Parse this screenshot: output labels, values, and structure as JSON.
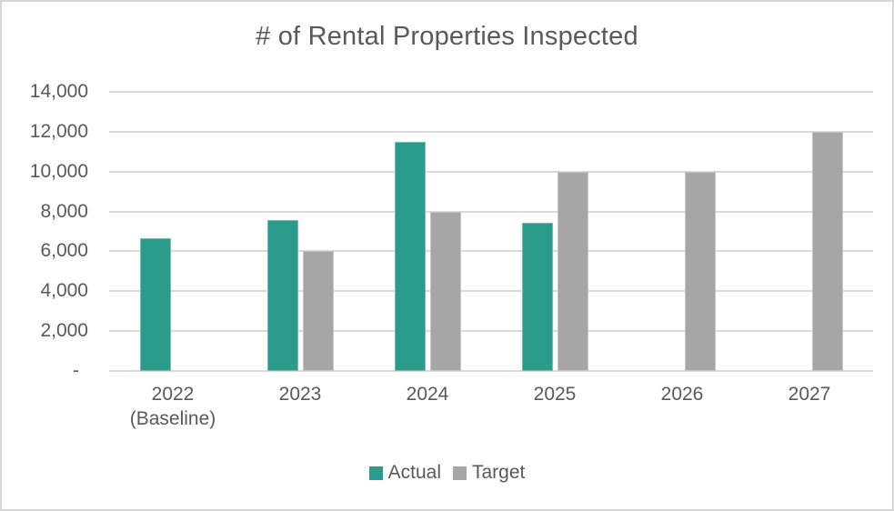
{
  "theme": {
    "background": "#FFFFFF",
    "border_color": "#D6D6D6",
    "grid_color": "#DADADA",
    "text_color": "#595959",
    "actual_color": "#2B9C8C",
    "target_color": "#A6A6A6"
  },
  "chart_data": {
    "type": "bar",
    "title": "# of Rental Properties Inspected",
    "categories": [
      [
        "2022",
        "(Baseline)"
      ],
      [
        "2023"
      ],
      [
        "2024"
      ],
      [
        "2025"
      ],
      [
        "2026"
      ],
      [
        "2027"
      ]
    ],
    "series": [
      {
        "name": "Actual",
        "color": "#2B9C8C",
        "values": [
          6650,
          7550,
          11500,
          7450,
          null,
          null
        ]
      },
      {
        "name": "Target",
        "color": "#A6A6A6",
        "values": [
          null,
          6000,
          8000,
          10000,
          10000,
          12000
        ]
      }
    ],
    "ylim": [
      0,
      14000
    ],
    "ytick_step": 2000,
    "ytick_labels": [
      "-",
      "2,000",
      "4,000",
      "6,000",
      "8,000",
      "10,000",
      "12,000",
      "14,000"
    ],
    "grid": true,
    "legend_position": "bottom",
    "xlabel": "",
    "ylabel": ""
  }
}
